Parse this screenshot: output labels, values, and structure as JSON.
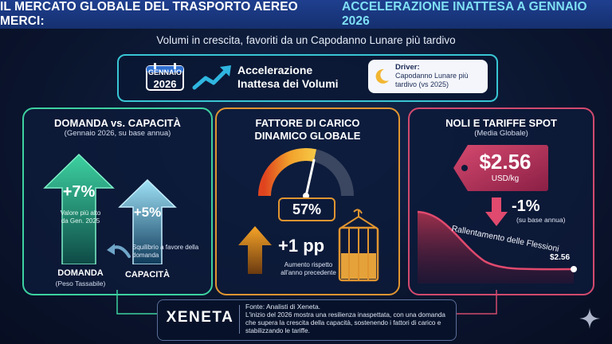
{
  "header": {
    "title_main": "IL MERCATO GLOBALE DEL TRASPORTO AEREO MERCI:",
    "title_highlight": "ACCELERAZIONE INATTESA A GENNAIO 2026",
    "subtitle": "Volumi in crescita, favoriti da un Capodanno Lunare più tardivo"
  },
  "top_panel": {
    "calendar_month": "GENNAIO",
    "calendar_year": "2026",
    "headline_line1": "Accelerazione",
    "headline_line2": "Inattesa dei Volumi",
    "driver_label": "Driver:",
    "driver_text": "Capodanno Lunare più tardivo (vs 2025)",
    "icons": [
      "calendar-icon",
      "trend-up-arrow-icon",
      "moon-icon"
    ]
  },
  "demand_capacity": {
    "title": "DOMANDA vs. CAPACITÀ",
    "subtitle": "(Gennaio 2026, su base annua)",
    "demand_pct": "+7%",
    "demand_note": "Valore più alto da Gen. 2025",
    "capacity_pct": "+5%",
    "imbalance_note": "Squilibrio a favore della domanda",
    "demand_label": "DOMANDA",
    "demand_sublabel": "(Peso Tassabile)",
    "capacity_label": "CAPACITÀ",
    "colors": {
      "demand": "#3dd1a0",
      "capacity": "#7fd6f0"
    }
  },
  "load_factor": {
    "title_line1": "FATTORE DI CARICO",
    "title_line2": "DINAMICO GLOBALE",
    "gauge_value": "57%",
    "gauge_fraction": 0.57,
    "change_value": "+1 pp",
    "change_note": "Aumento rispetto all'anno precedente",
    "icons": [
      "gauge-icon",
      "up-arrow-icon",
      "cargo-container-icon"
    ],
    "colors": {
      "accent": "#e09530"
    }
  },
  "spot_rates": {
    "title": "NOLI E TARIFFE SPOT",
    "subtitle": "(Media Globale)",
    "price": "$2.56",
    "unit": "USD/kg",
    "change": "-1%",
    "change_note": "(su base annua)",
    "trend_label": "Rallentamento delle Flessioni",
    "end_value": "$2.56",
    "colors": {
      "accent": "#d24a6e"
    }
  },
  "footer": {
    "logo_text": "XENETA",
    "source_label": "Fonte: Analisti di Xeneta.",
    "source_text": "L'inizio del 2026 mostra una resilienza inaspettata, con una domanda che supera la crescita della capacità, sostenendo i fattori di carico e stabilizzando le tariffe."
  }
}
